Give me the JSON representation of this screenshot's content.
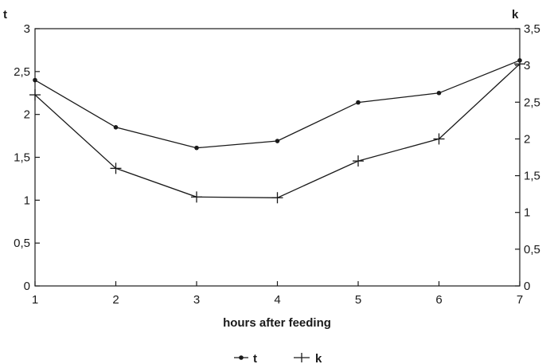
{
  "chart_data": {
    "type": "line",
    "x": [
      1,
      2,
      3,
      4,
      5,
      6,
      7
    ],
    "xlabel": "hours after feeding",
    "xlim": [
      1,
      7
    ],
    "x_ticks": [
      "1",
      "2",
      "3",
      "4",
      "5",
      "6",
      "7"
    ],
    "left_axis": {
      "label": "t",
      "ylim": [
        0,
        3
      ],
      "ticks": [
        0,
        0.5,
        1,
        1.5,
        2,
        2.5,
        3
      ],
      "tick_labels": [
        "0",
        "0,5",
        "1",
        "1,5",
        "2",
        "2,5",
        "3"
      ]
    },
    "right_axis": {
      "label": "k",
      "ylim": [
        0,
        3.5
      ],
      "ticks": [
        0,
        0.5,
        1,
        1.5,
        2,
        2.5,
        3,
        3.5
      ],
      "tick_labels": [
        "0",
        "0,5",
        "1",
        "1,5",
        "2",
        "2,5",
        "3",
        "3,5"
      ]
    },
    "series": [
      {
        "name": "t",
        "axis": "left",
        "marker": "dot",
        "values": [
          2.4,
          1.85,
          1.61,
          1.69,
          2.14,
          2.25,
          2.63
        ]
      },
      {
        "name": "k",
        "axis": "right",
        "marker": "plus",
        "values": [
          2.6,
          1.6,
          1.21,
          1.2,
          1.7,
          2.0,
          3.02
        ]
      }
    ],
    "grid": false,
    "legend": "bottom-center",
    "colors": {
      "line": "#1a1a1a",
      "frame": "#1a1a1a",
      "background": "#ffffff"
    }
  }
}
